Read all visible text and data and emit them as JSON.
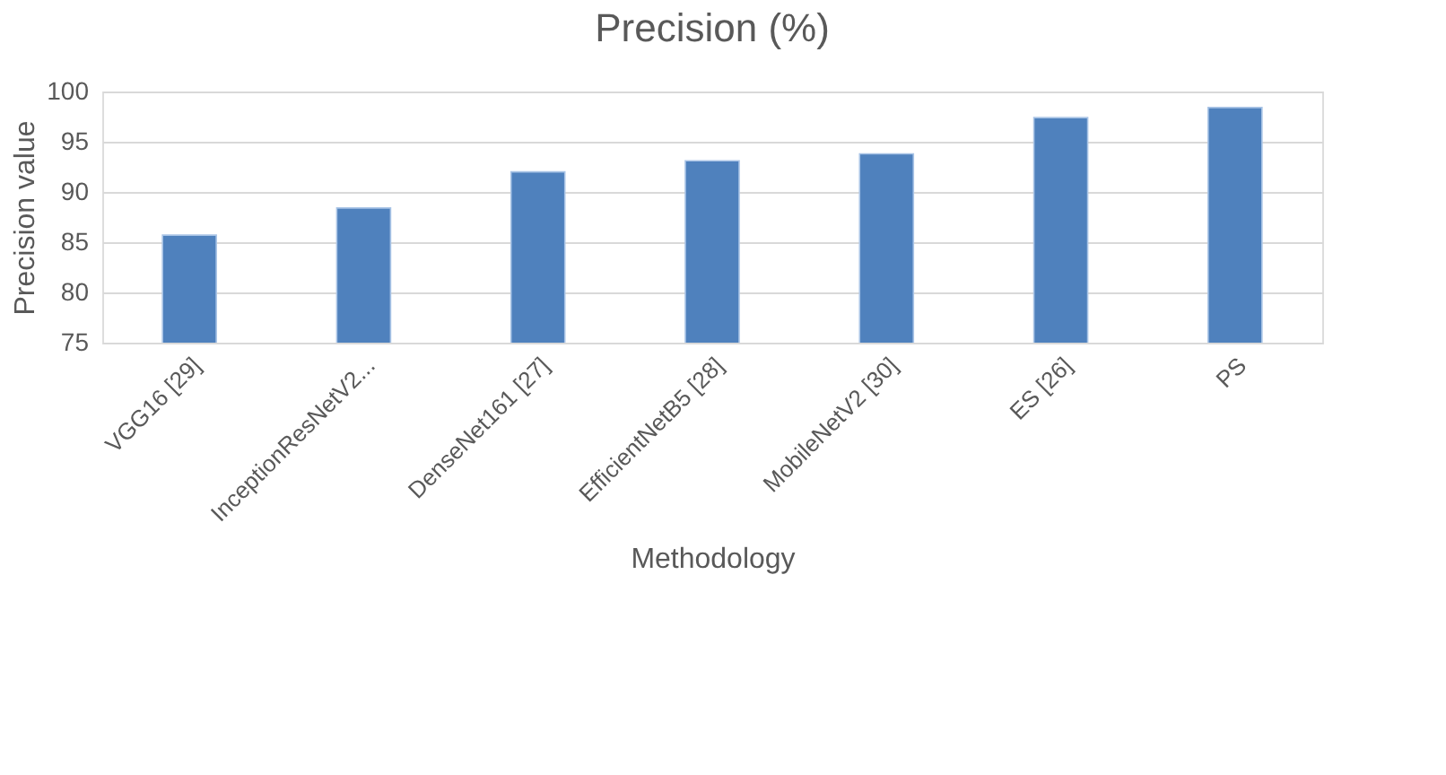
{
  "chart_data": {
    "type": "bar",
    "title": "Precision (%)",
    "xlabel": "Methodology",
    "ylabel": "Precision value",
    "categories": [
      "VGG16 [29]",
      "InceptionResNetV2...",
      "DenseNet161 [27]",
      "EfficientNetB5 [28]",
      "MobileNetV2 [30]",
      "ES [26]",
      "PS"
    ],
    "values": [
      85.7,
      88.4,
      92.0,
      93.1,
      93.8,
      97.4,
      98.4
    ],
    "color": "#4f81bd",
    "ylim": [
      75,
      100
    ],
    "yticks": [
      75,
      80,
      85,
      90,
      95,
      100
    ],
    "grid": "y"
  }
}
